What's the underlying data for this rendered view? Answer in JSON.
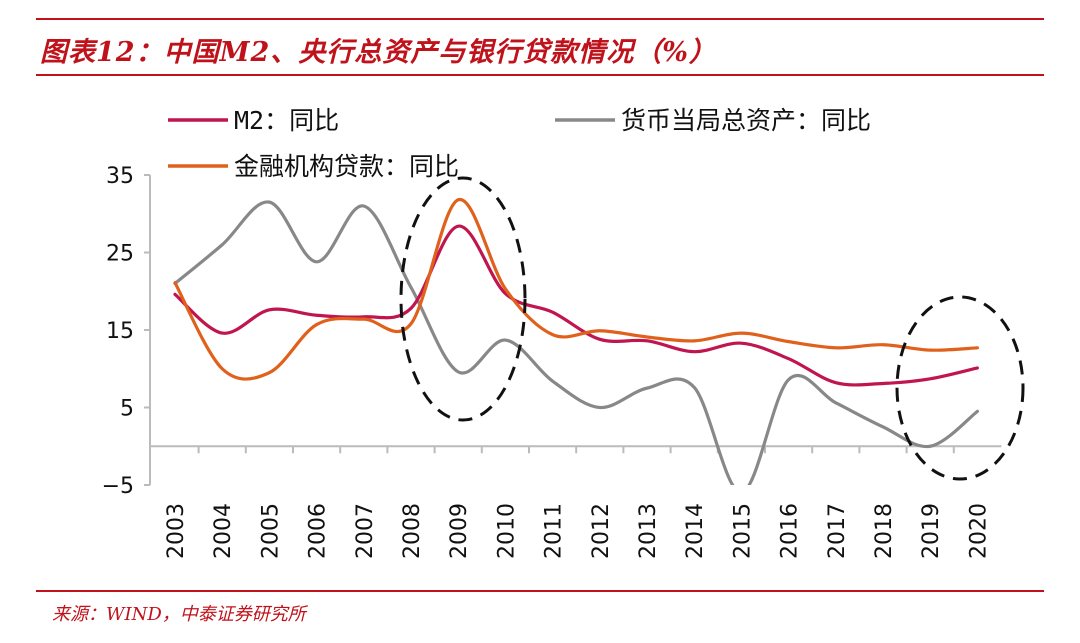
{
  "title": "图表12：中国M2、央行总资产与银行贷款情况（%）",
  "source": "来源：WIND，中泰证券研究所",
  "colors": {
    "accent": "#c0121b",
    "m2": "#c0154e",
    "central_bank": "#888888",
    "loans": "#e0611c"
  },
  "chart_data": {
    "type": "line",
    "title": "图表12：中国M2、央行总资产与银行贷款情况（%）",
    "xlabel": "",
    "ylabel": "",
    "categories": [
      "2003",
      "2004",
      "2005",
      "2006",
      "2007",
      "2008",
      "2009",
      "2010",
      "2011",
      "2012",
      "2013",
      "2014",
      "2015",
      "2016",
      "2017",
      "2018",
      "2019",
      "2020"
    ],
    "yticks": [
      35,
      25,
      15,
      5,
      -5
    ],
    "ylim": [
      -5,
      35
    ],
    "legend_position": "top-left",
    "grid": false,
    "series": [
      {
        "name": "M2：同比",
        "key": "m2",
        "values": [
          19.6,
          14.6,
          17.6,
          16.9,
          16.7,
          17.8,
          28.4,
          19.7,
          17.3,
          13.8,
          13.6,
          12.2,
          13.3,
          11.3,
          8.2,
          8.1,
          8.7,
          10.1
        ]
      },
      {
        "name": "货币当局总资产：同比",
        "key": "central_bank",
        "values": [
          21.0,
          26.0,
          31.5,
          23.8,
          31.0,
          20.5,
          9.6,
          13.7,
          8.4,
          5.0,
          7.5,
          7.6,
          -6.0,
          8.6,
          5.6,
          2.5,
          0.0,
          4.5
        ]
      },
      {
        "name": "金融机构贷款：同比",
        "key": "loans",
        "values": [
          21.1,
          10.0,
          9.5,
          15.7,
          16.4,
          15.8,
          31.8,
          20.3,
          14.4,
          14.9,
          14.1,
          13.6,
          14.6,
          13.5,
          12.7,
          13.1,
          12.4,
          12.7
        ]
      }
    ],
    "annotations": [
      "dashed-ellipse-2009",
      "dashed-ellipse-2019-2020"
    ]
  }
}
